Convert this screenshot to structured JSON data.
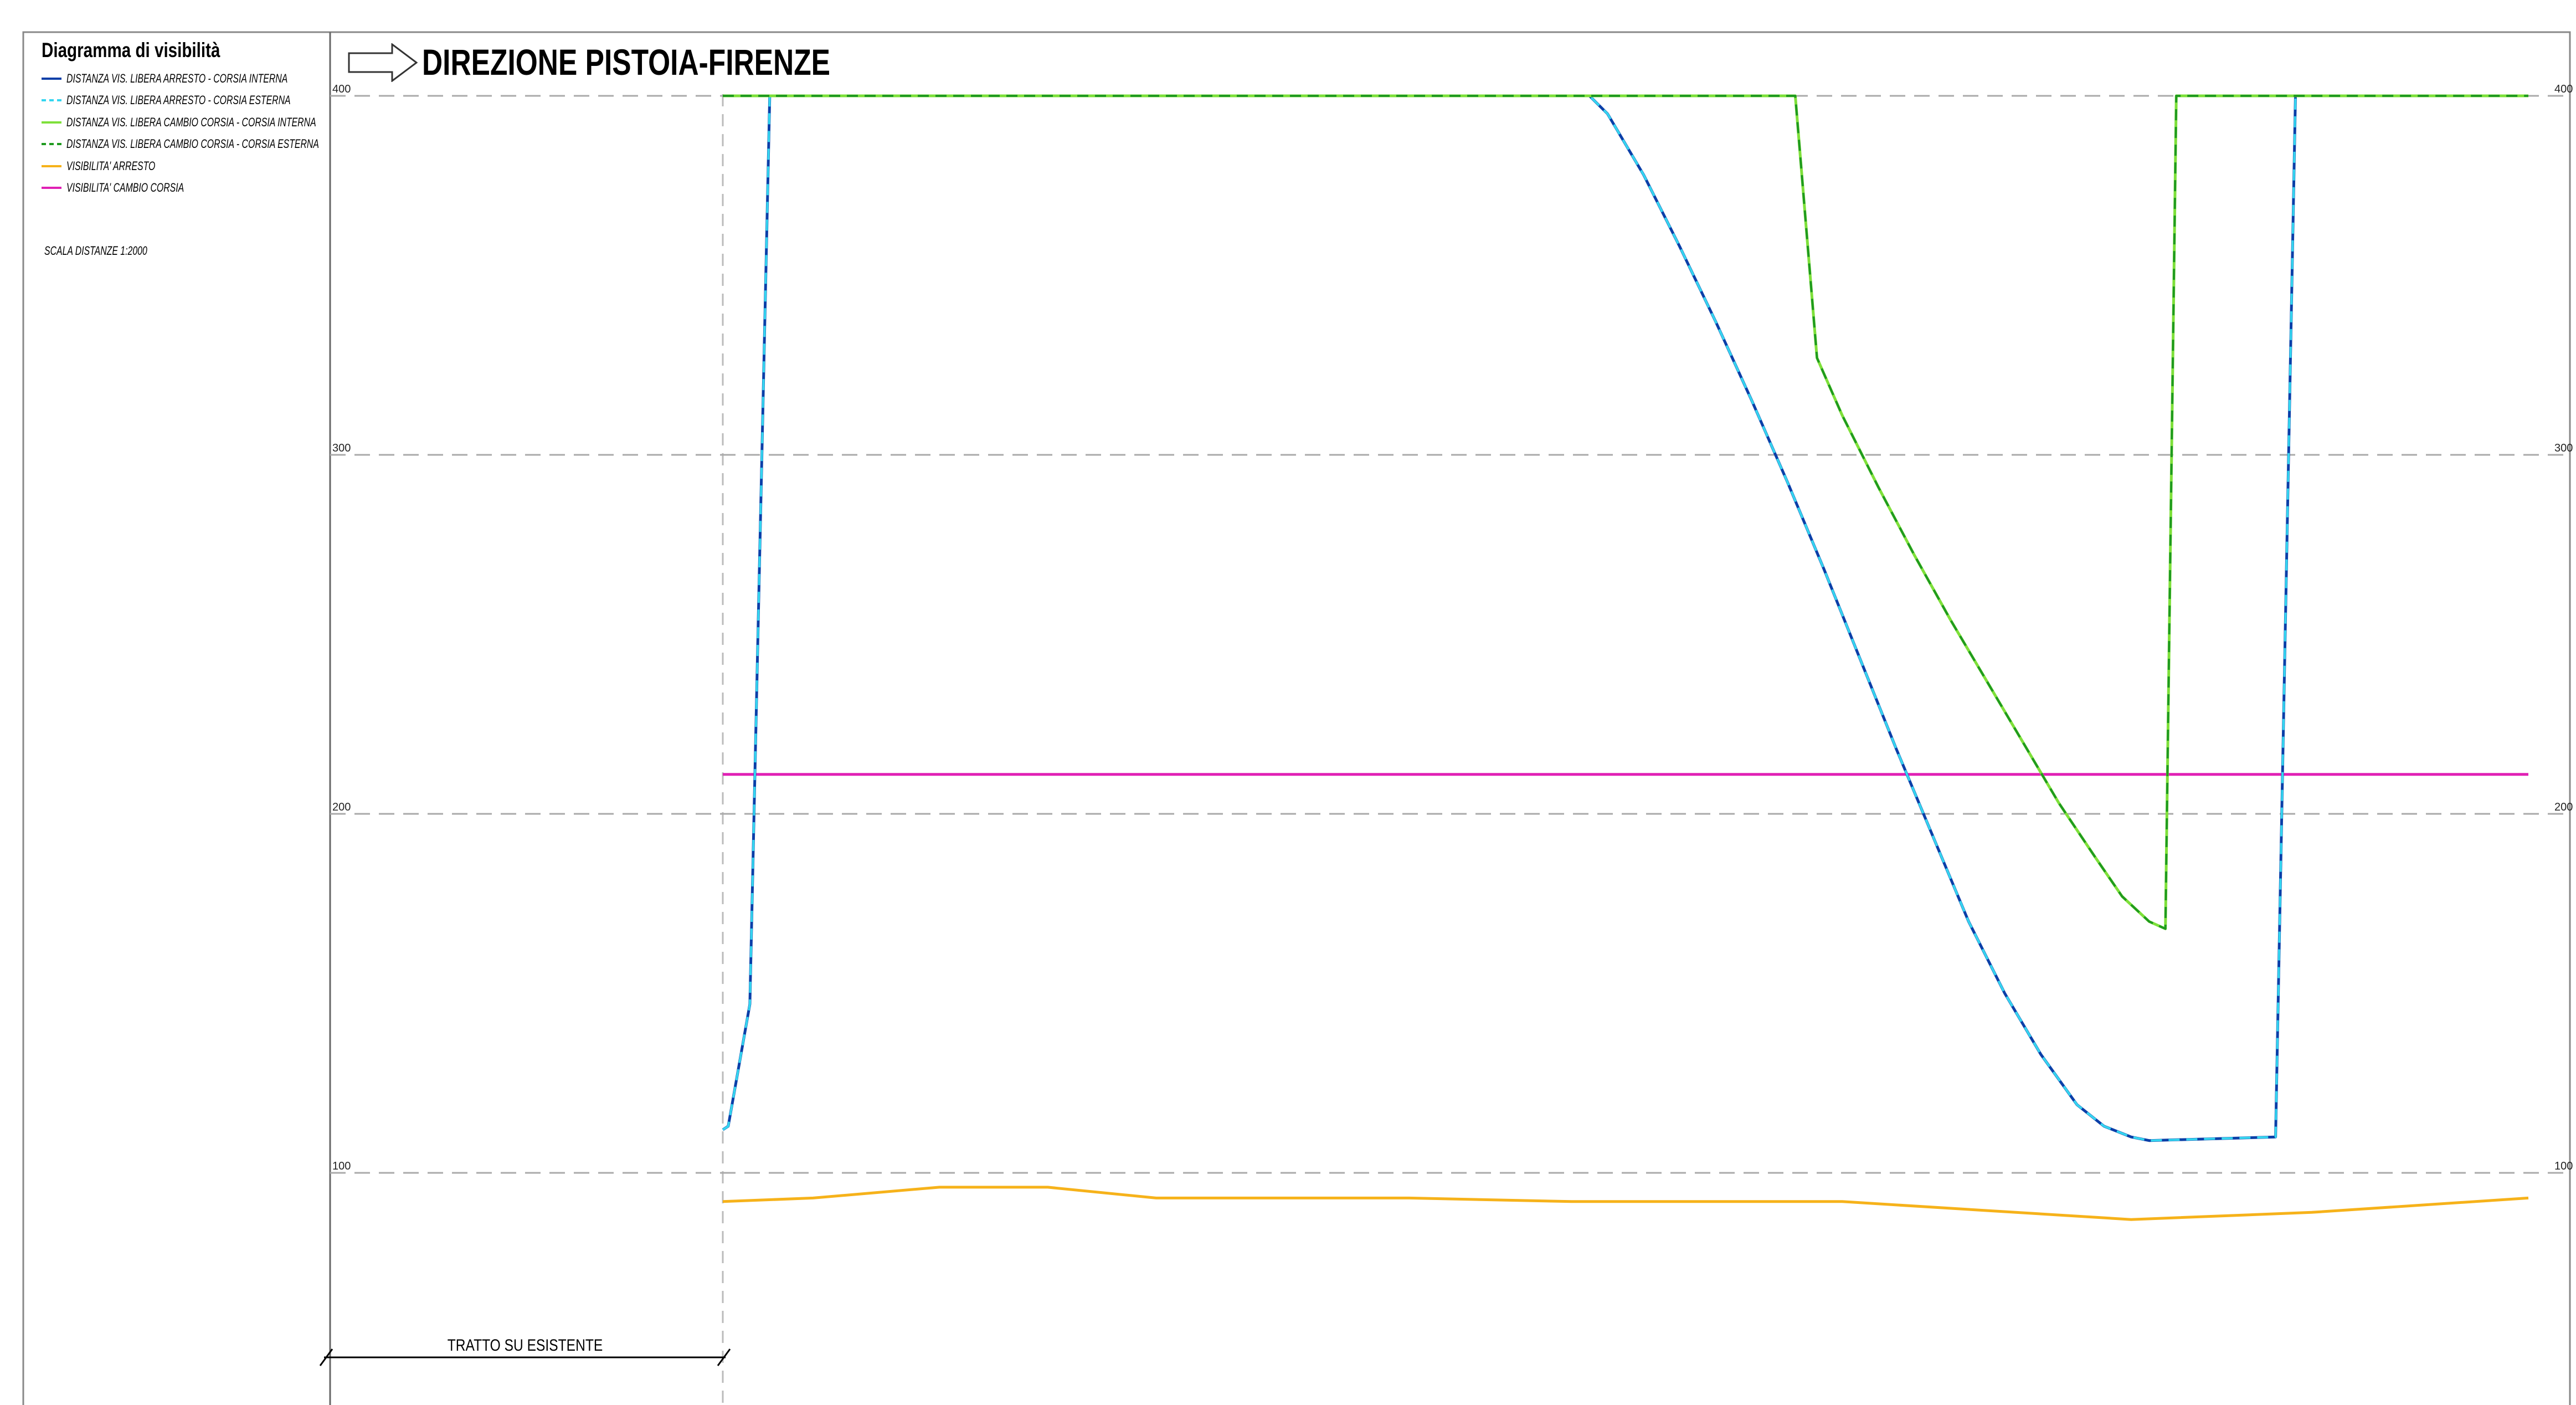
{
  "legend": {
    "title": "Diagramma di visibilità",
    "scale_note": "SCALA DISTANZE 1:2000",
    "items": [
      {
        "label": "DISTANZA VIS. LIBERA ARRESTO - CORSIA INTERNA",
        "color": "#0b3fa8",
        "dash": "solid"
      },
      {
        "label": "DISTANZA VIS. LIBERA ARRESTO - CORSIA ESTERNA",
        "color": "#35d6f0",
        "dash": "dashed"
      },
      {
        "label": "DISTANZA VIS. LIBERA CAMBIO CORSIA - CORSIA INTERNA",
        "color": "#7ee03a",
        "dash": "solid"
      },
      {
        "label": "DISTANZA VIS. LIBERA CAMBIO CORSIA - CORSIA ESTERNA",
        "color": "#1f9a1f",
        "dash": "dashed"
      },
      {
        "label": "VISIBILITA' ARRESTO",
        "color": "#f6b21a",
        "dash": "solid"
      },
      {
        "label": "VISIBILITA' CAMBIO CORSIA",
        "color": "#e020b4",
        "dash": "solid"
      }
    ]
  },
  "header": {
    "direction_icon": "right-arrow-icon",
    "title": "DIREZIONE PISTOIA-FIRENZE"
  },
  "annotation": {
    "label": "TRATTO SU ESISTENTE"
  },
  "chart_data": {
    "type": "line",
    "title": "DIREZIONE PISTOIA-FIRENZE",
    "xlabel": "",
    "ylabel": "",
    "x_range": [
      0,
      100
    ],
    "ylim": [
      65,
      405
    ],
    "y_ticks": [
      100,
      200,
      300,
      400
    ],
    "grid": "horizontal dashed at y ticks",
    "legend_position": "top-left panel",
    "series": [
      {
        "name": "DISTANZA VIS. LIBERA ARRESTO - CORSIA INTERNA",
        "color": "#0b3fa8",
        "dash": "solid",
        "x": [
          0,
          0.3,
          1.5,
          2.6,
          48,
          49,
          51,
          53,
          55,
          57,
          59,
          61,
          63,
          65,
          67,
          69,
          71,
          73,
          75,
          76.5,
          78,
          79,
          86,
          87.1,
          100
        ],
        "y": [
          112,
          113,
          147,
          400,
          400,
          395,
          378,
          358,
          337,
          315,
          292,
          268,
          243,
          218,
          194,
          170,
          150,
          133,
          119,
          113,
          110,
          109,
          110,
          400,
          400
        ]
      },
      {
        "name": "DISTANZA VIS. LIBERA ARRESTO - CORSIA ESTERNA",
        "color": "#35d6f0",
        "dash": "dashed",
        "x": [
          0,
          0.3,
          1.5,
          2.6,
          48,
          49,
          51,
          53,
          55,
          57,
          59,
          61,
          63,
          65,
          67,
          69,
          71,
          73,
          75,
          76.5,
          78,
          79,
          86,
          87.1,
          100
        ],
        "y": [
          112,
          113,
          147,
          400,
          400,
          395,
          378,
          358,
          337,
          315,
          292,
          268,
          243,
          218,
          194,
          170,
          150,
          133,
          119,
          113,
          110,
          109,
          110,
          400,
          400
        ]
      },
      {
        "name": "DISTANZA VIS. LIBERA CAMBIO CORSIA - CORSIA INTERNA",
        "color": "#7ee03a",
        "dash": "solid",
        "x": [
          0,
          59.4,
          60.6,
          62,
          64,
          66,
          68,
          70,
          72,
          74,
          76,
          77.5,
          79,
          79.9,
          80.5,
          100
        ],
        "y": [
          400,
          400,
          327,
          311,
          291,
          272,
          254,
          237,
          220,
          203,
          188,
          177,
          170,
          168,
          400,
          400
        ]
      },
      {
        "name": "DISTANZA VIS. LIBERA CAMBIO CORSIA - CORSIA ESTERNA",
        "color": "#1f9a1f",
        "dash": "dashed",
        "x": [
          0,
          59.4,
          60.6,
          62,
          64,
          66,
          68,
          70,
          72,
          74,
          76,
          77.5,
          79,
          79.9,
          80.5,
          100
        ],
        "y": [
          400,
          400,
          327,
          311,
          291,
          272,
          254,
          237,
          220,
          203,
          188,
          177,
          170,
          168,
          400,
          400
        ]
      },
      {
        "name": "VISIBILITA' ARRESTO",
        "color": "#f6b21a",
        "dash": "solid",
        "x": [
          0,
          5,
          12,
          18,
          24,
          38,
          47,
          62,
          78,
          88,
          100
        ],
        "y": [
          92,
          93,
          96,
          96,
          93,
          93,
          92,
          92,
          87,
          89,
          93
        ]
      },
      {
        "name": "VISIBILITA' CAMBIO CORSIA",
        "color": "#e020b4",
        "dash": "solid",
        "x": [
          0,
          100
        ],
        "y": [
          211,
          211
        ]
      }
    ]
  }
}
